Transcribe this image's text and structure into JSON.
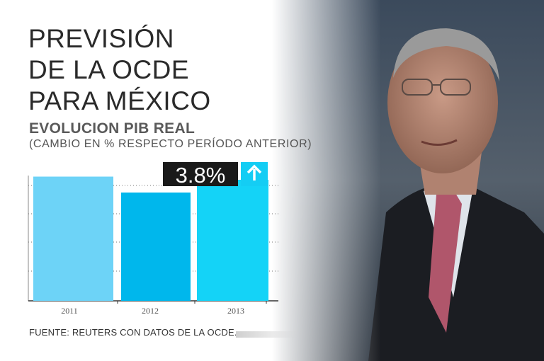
{
  "title_lines": [
    "PREVISIÓN",
    "DE LA OCDE",
    "PARA MÉXICO"
  ],
  "subtitle": "EVOLUCION PIB REAL",
  "subtitle2": "(CAMBIO EN % RESPECTO PERÍODO ANTERIOR)",
  "source": "FUENTE: REUTERS CON DATOS DE LA OCDE.",
  "colors": {
    "bar_2011": "#6dd3f7",
    "bar_2012": "#00b7ec",
    "bar_2013": "#14d3f7",
    "callout_bg": "#1a1a1a",
    "arrow_bg": "#14cdf4"
  },
  "chart_data": {
    "type": "bar",
    "categories": [
      "2011",
      "2012",
      "2013"
    ],
    "values": [
      3.9,
      3.4,
      3.8
    ],
    "ylim": [
      0,
      4.0
    ],
    "grid": true,
    "annotations": [
      {
        "category": "2013",
        "text": "3.8%",
        "icon": "arrow-up-icon"
      }
    ]
  }
}
